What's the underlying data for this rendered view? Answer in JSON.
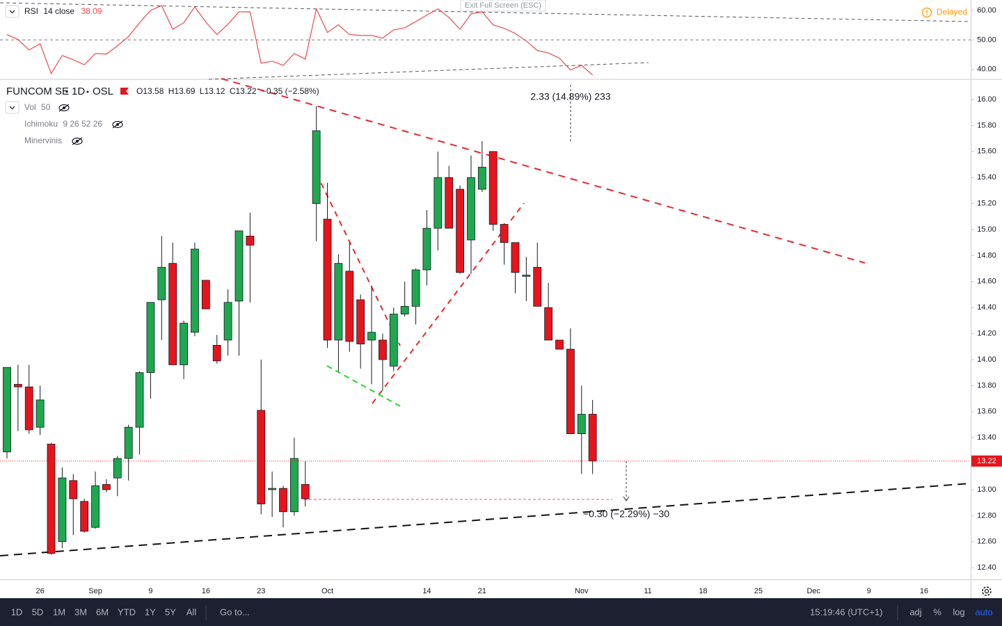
{
  "toolbar": {
    "range_buttons": [
      "1D",
      "5D",
      "1M",
      "3M",
      "6M",
      "YTD",
      "1Y",
      "5Y",
      "All"
    ],
    "goto": "Go to...",
    "clock": "15:19:46 (UTC+1)",
    "scale_buttons": [
      "adj",
      "%",
      "log",
      "auto"
    ],
    "exit_fullscreen": "Exit Full Screen (ESC)",
    "status": "Delayed"
  },
  "chart_data": [
    {
      "type": "candlestick",
      "title": "FUNCOM SE",
      "interval": "1D",
      "exchange": "OSL",
      "ohlc_labels": [
        "O",
        "H",
        "L",
        "C"
      ],
      "change_label": "−0.35 (−2.58%)",
      "indicators": [
        {
          "name": "Vol",
          "params": "50"
        },
        {
          "name": "Ichimoku",
          "params": "9 26 52 26"
        },
        {
          "name": "Minervinis"
        }
      ],
      "annotations": [
        "2.33 (14.89%) 233",
        "−0.30 (−2.29%) −30"
      ],
      "up_color": "#1fa84f",
      "down_color": "#e8141c",
      "categories": [
        null,
        null,
        null,
        "26",
        null,
        null,
        null,
        null,
        "Sep",
        null,
        null,
        null,
        null,
        "9",
        null,
        null,
        null,
        null,
        "16",
        null,
        null,
        null,
        null,
        "23",
        null,
        null,
        null,
        null,
        null,
        "Oct",
        null,
        null,
        null,
        null,
        null,
        null,
        null,
        null,
        "14",
        null,
        null,
        null,
        null,
        "21",
        null,
        null,
        null,
        null,
        null,
        null,
        null,
        null,
        "Nov",
        null,
        null,
        null,
        null,
        null,
        "11",
        null,
        null,
        null,
        null,
        "18",
        null,
        null,
        null,
        null,
        "25",
        null,
        null,
        null,
        null,
        "Dec",
        null,
        null,
        null,
        null,
        "9",
        null,
        null,
        null,
        null,
        "16",
        null,
        null,
        null,
        null
      ],
      "open": [
        13.29,
        13.81,
        13.79,
        13.48,
        13.35,
        12.6,
        13.07,
        12.91,
        12.71,
        13.04,
        13.09,
        13.24,
        13.48,
        13.9,
        14.46,
        14.74,
        13.96,
        14.21,
        14.61,
        14.11,
        14.15,
        14.45,
        14.95,
        13.61,
        13.0,
        13.01,
        12.83,
        13.04,
        15.2,
        15.08,
        14.15,
        14.68,
        14.46,
        14.15,
        14.15,
        13.95,
        14.35,
        14.41,
        14.69,
        15.01,
        15.4,
        15.31,
        14.92,
        15.31,
        15.6,
        15.04,
        14.9,
        14.64,
        14.71,
        14.4,
        14.15,
        14.08,
        13.43,
        13.58,
        null,
        null,
        null,
        null,
        null,
        null,
        null,
        null,
        null,
        null,
        null,
        null,
        null,
        null,
        null,
        null,
        null,
        null,
        null,
        null,
        null,
        null,
        null,
        null,
        null,
        null,
        null,
        null,
        null,
        null,
        null,
        null,
        null,
        null
      ],
      "high": [
        13.94,
        13.96,
        13.96,
        13.8,
        13.36,
        13.17,
        13.12,
        12.93,
        13.14,
        13.08,
        13.26,
        13.5,
        13.91,
        14.44,
        14.95,
        14.9,
        14.3,
        14.9,
        14.61,
        14.19,
        14.54,
        14.99,
        15.13,
        14.0,
        13.14,
        13.03,
        13.4,
        13.22,
        15.95,
        15.36,
        14.81,
        14.9,
        14.5,
        14.57,
        14.2,
        14.4,
        14.6,
        14.7,
        15.15,
        15.6,
        15.49,
        15.34,
        15.57,
        15.68,
        15.6,
        15.05,
        14.9,
        14.79,
        14.9,
        14.59,
        14.15,
        14.24,
        13.8,
        13.69,
        null,
        null,
        null,
        null,
        null,
        null,
        null,
        null,
        null,
        null,
        null,
        null,
        null,
        null,
        null,
        null,
        null,
        null,
        null,
        null,
        null,
        null,
        null,
        null,
        null,
        null,
        null,
        null,
        null,
        null,
        null,
        null,
        null,
        null
      ],
      "low": [
        13.24,
        13.45,
        13.43,
        13.42,
        12.5,
        12.55,
        12.65,
        12.67,
        12.7,
        12.98,
        12.95,
        13.07,
        13.27,
        13.7,
        14.15,
        13.96,
        13.85,
        14.18,
        14.39,
        13.97,
        14.03,
        14.03,
        14.44,
        12.81,
        12.79,
        12.71,
        12.8,
        12.87,
        14.91,
        14.09,
        13.91,
        14.06,
        13.93,
        13.81,
        13.76,
        13.91,
        14.33,
        14.27,
        14.57,
        14.84,
        15.01,
        14.66,
        14.66,
        15.29,
        14.99,
        14.73,
        14.51,
        14.45,
        14.41,
        14.15,
        14.08,
        13.43,
        13.12,
        13.12,
        null,
        null,
        null,
        null,
        null,
        null,
        null,
        null,
        null,
        null,
        null,
        null,
        null,
        null,
        null,
        null,
        null,
        null,
        null,
        null,
        null,
        null,
        null,
        null,
        null,
        null,
        null,
        null,
        null,
        null,
        null,
        null,
        null,
        null
      ],
      "close": [
        13.94,
        13.79,
        13.46,
        13.69,
        12.51,
        13.09,
        12.93,
        12.68,
        13.03,
        13.0,
        13.24,
        13.48,
        13.9,
        14.44,
        14.71,
        13.96,
        14.28,
        14.85,
        14.39,
        13.99,
        14.44,
        14.99,
        14.88,
        12.89,
        13.01,
        12.83,
        13.24,
        12.93,
        15.76,
        14.15,
        14.74,
        14.14,
        14.12,
        14.21,
        14.0,
        14.35,
        14.41,
        14.69,
        15.01,
        15.4,
        15.01,
        14.67,
        15.4,
        15.48,
        15.04,
        14.9,
        14.67,
        14.65,
        14.41,
        14.15,
        14.08,
        13.43,
        13.58,
        13.22,
        null,
        null,
        null,
        null,
        null,
        null,
        null,
        null,
        null,
        null,
        null,
        null,
        null,
        null,
        null,
        null,
        null,
        null,
        null,
        null,
        null,
        null,
        null,
        null,
        null,
        null,
        null,
        null,
        null,
        null,
        null,
        null,
        null,
        null
      ],
      "ylim": [
        12.31,
        16.15
      ],
      "yticks": [
        {
          "value": 12.4,
          "label": "12.40"
        },
        {
          "value": 12.6,
          "label": "12.60"
        },
        {
          "value": 12.8,
          "label": "12.80"
        },
        {
          "value": 13.0,
          "label": "13.00"
        },
        {
          "value": 13.2,
          "label": "13.20"
        },
        {
          "value": 13.4,
          "label": "13.40"
        },
        {
          "value": 13.6,
          "label": "13.60"
        },
        {
          "value": 13.8,
          "label": "13.80"
        },
        {
          "value": 14.0,
          "label": "14.00"
        },
        {
          "value": 14.2,
          "label": "14.20"
        },
        {
          "value": 14.4,
          "label": "14.40"
        },
        {
          "value": 14.6,
          "label": "14.60"
        },
        {
          "value": 14.8,
          "label": "14.80"
        },
        {
          "value": 15.0,
          "label": "15.00"
        },
        {
          "value": 15.2,
          "label": "15.20"
        },
        {
          "value": 15.4,
          "label": "15.40"
        },
        {
          "value": 15.6,
          "label": "15.60"
        },
        {
          "value": 15.8,
          "label": "15.80"
        },
        {
          "value": 16.0,
          "label": "16.00"
        }
      ]
    },
    {
      "type": "line",
      "title": "RSI",
      "params": "14 close",
      "color": "#f0474f",
      "values": [
        51.8,
        50.1,
        46.6,
        48.7,
        38.6,
        44.7,
        43.3,
        41.6,
        45.4,
        45.2,
        48.0,
        51.1,
        55.8,
        60.0,
        61.6,
        53.6,
        55.8,
        61.2,
        56.0,
        51.8,
        55.3,
        59.5,
        59.5,
        42.1,
        42.8,
        41.4,
        45.4,
        43.5,
        60.5,
        52.5,
        55.1,
        51.8,
        51.5,
        51.5,
        50.6,
        53.4,
        54.1,
        56.2,
        58.4,
        60.5,
        57.6,
        53.6,
        58.8,
        59.5,
        55.1,
        53.9,
        52.2,
        49.6,
        46.4,
        45.6,
        43.8,
        39.8,
        41.4,
        38.09,
        null,
        null,
        null,
        null,
        null,
        null,
        null,
        null,
        null,
        null,
        null,
        null,
        null,
        null,
        null,
        null,
        null,
        null,
        null,
        null,
        null,
        null,
        null,
        null,
        null,
        null,
        null,
        null,
        null,
        null,
        null,
        null,
        null,
        null
      ],
      "hline": 50,
      "ylim": [
        36.9,
        63.5
      ],
      "yticks": [
        {
          "value": 40,
          "label": "40.00"
        },
        {
          "value": 50,
          "label": "50.00"
        },
        {
          "value": 60,
          "label": "60.00"
        }
      ]
    }
  ]
}
